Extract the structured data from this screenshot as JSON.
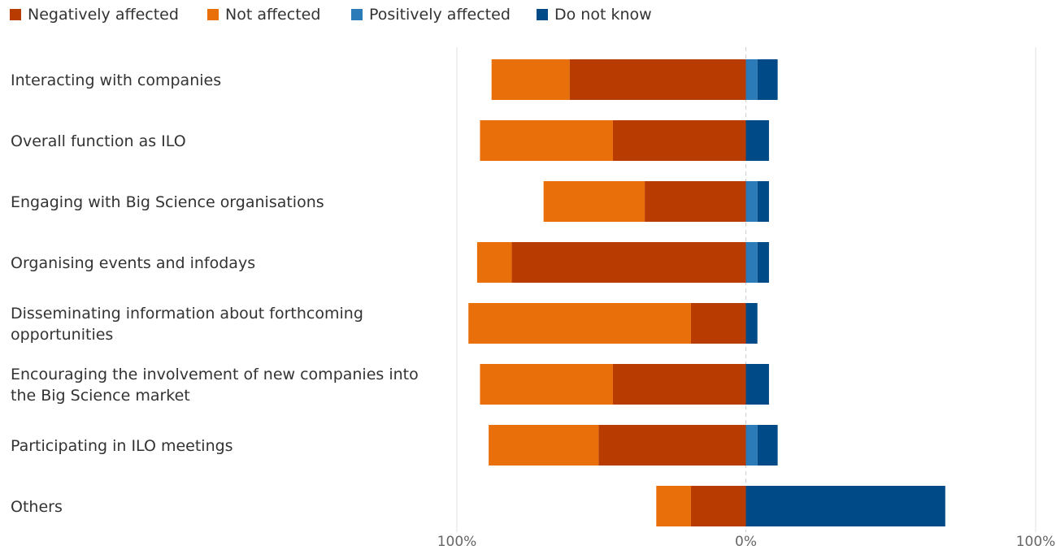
{
  "chart_data": {
    "type": "bar",
    "orientation": "horizontal-diverging",
    "categories": [
      [
        "Interacting with companies"
      ],
      [
        "Overall function as ILO"
      ],
      [
        "Engaging with Big Science organisations"
      ],
      [
        "Organising events and infodays"
      ],
      [
        "Disseminating information about forthcoming",
        "opportunities"
      ],
      [
        "Encouraging the involvement of new companies into",
        "the Big Science market"
      ],
      [
        "Participating in ILO meetings"
      ],
      [
        "Others"
      ]
    ],
    "series": [
      {
        "name": "Negatively affected",
        "side": "left",
        "color": "#B83B02",
        "values": [
          61,
          46,
          35,
          81,
          19,
          46,
          51,
          19
        ]
      },
      {
        "name": "Not affected",
        "side": "left",
        "color": "#E96F0A",
        "values": [
          27,
          46,
          35,
          12,
          77,
          46,
          38,
          12
        ]
      },
      {
        "name": "Positively affected",
        "side": "right",
        "color": "#2B7BB9",
        "values": [
          4,
          0,
          4,
          4,
          0,
          0,
          4,
          0
        ]
      },
      {
        "name": "Do not know",
        "side": "right",
        "color": "#004B87",
        "values": [
          7,
          8,
          4,
          4,
          4,
          8,
          7,
          69
        ]
      }
    ],
    "xlim": [
      -100,
      100
    ],
    "x_ticks": [
      "100%",
      "0%",
      "100%"
    ],
    "legend_position": "top-left",
    "grid": true
  }
}
